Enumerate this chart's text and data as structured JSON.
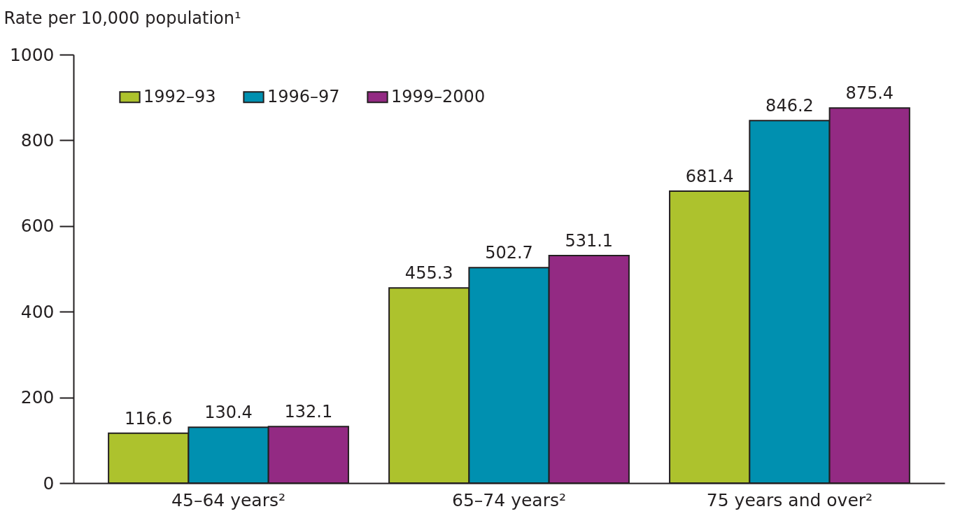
{
  "chart_data": {
    "type": "bar",
    "ylabel": "Rate per 10,000 population¹",
    "categories": [
      "45–64 years²",
      "65–74 years²",
      "75 years and over²"
    ],
    "series": [
      {
        "name": "1992–93",
        "color": "#adc22d",
        "values": [
          116.6,
          455.3,
          681.4
        ]
      },
      {
        "name": "1996–97",
        "color": "#0090b0",
        "values": [
          130.4,
          502.7,
          846.2
        ]
      },
      {
        "name": "1999–2000",
        "color": "#932a83",
        "values": [
          132.1,
          531.1,
          875.4
        ]
      }
    ],
    "ylim": [
      0,
      1000
    ],
    "yticks": [
      0,
      200,
      400,
      600,
      800,
      {
        "value": 1000,
        "label": "1000"
      }
    ],
    "data_labels": true,
    "legend": "top left"
  }
}
